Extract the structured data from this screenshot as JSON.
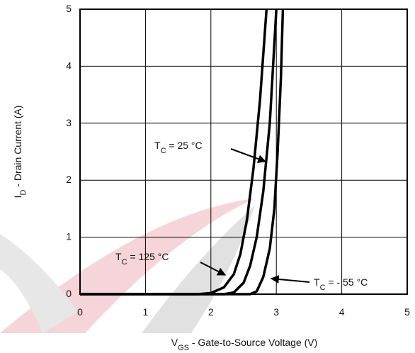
{
  "chart_data": {
    "type": "line",
    "x_label": [
      "V",
      "GS",
      " - Gate-to-Source Voltage (V)"
    ],
    "y_label": [
      "I",
      "D",
      " - Drain Current (A)"
    ],
    "xlim": [
      0,
      5
    ],
    "ylim": [
      0,
      5
    ],
    "xticks": [
      0,
      1,
      2,
      3,
      4,
      5
    ],
    "yticks": [
      0,
      1,
      2,
      3,
      4,
      5
    ],
    "grid": true,
    "series": [
      {
        "name": [
          "T",
          "C",
          " = 125 °C"
        ],
        "color": "#000000",
        "x": [
          0,
          1.8,
          2.0,
          2.2,
          2.35,
          2.45,
          2.55,
          2.65,
          2.75,
          2.85
        ],
        "values": [
          0,
          0,
          0.02,
          0.12,
          0.35,
          0.7,
          1.3,
          2.2,
          3.4,
          5
        ]
      },
      {
        "name": [
          "T",
          "C",
          " = 25 °C"
        ],
        "color": "#000000",
        "x": [
          0,
          2.2,
          2.35,
          2.5,
          2.6,
          2.7,
          2.8,
          2.9,
          3.0
        ],
        "values": [
          0,
          0,
          0.03,
          0.2,
          0.5,
          1.0,
          1.8,
          3.0,
          5
        ]
      },
      {
        "name": [
          "T",
          "C",
          " = - 55 °C"
        ],
        "color": "#000000",
        "x": [
          0,
          2.6,
          2.7,
          2.8,
          2.9,
          2.97,
          3.02,
          3.07,
          3.1
        ],
        "values": [
          0,
          0,
          0.05,
          0.3,
          0.8,
          1.5,
          2.5,
          3.8,
          5
        ]
      }
    ]
  }
}
